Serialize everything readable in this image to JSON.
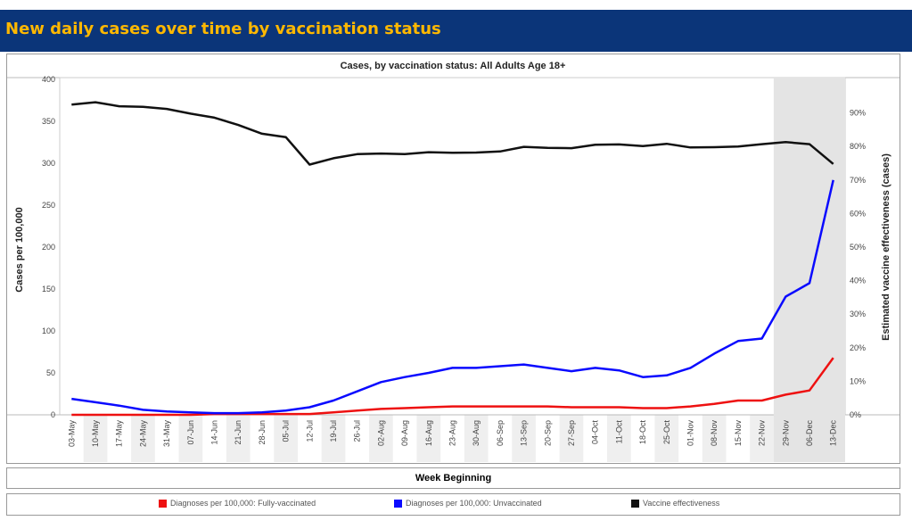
{
  "header": {
    "title": "New daily cases over time by vaccination status"
  },
  "chart_data": {
    "type": "line",
    "title": "Cases, by vaccination status: All Adults Age 18+",
    "xlabel": "Week Beginning",
    "ylabel": "Cases per 100,000",
    "y2label": "Estimated vaccine effectiveness (cases)",
    "ylim": [
      0,
      400
    ],
    "y2lim": [
      0,
      1
    ],
    "y_ticks": [
      "0",
      "50",
      "100",
      "150",
      "200",
      "250",
      "300",
      "350",
      "400"
    ],
    "y2_ticks": [
      "0%",
      "10%",
      "20%",
      "30%",
      "40%",
      "50%",
      "60%",
      "70%",
      "80%",
      "90%"
    ],
    "categories": [
      "03-May",
      "10-May",
      "17-May",
      "24-May",
      "31-May",
      "07-Jun",
      "14-Jun",
      "21-Jun",
      "28-Jun",
      "05-Jul",
      "12-Jul",
      "19-Jul",
      "26-Jul",
      "02-Aug",
      "09-Aug",
      "16-Aug",
      "23-Aug",
      "30-Aug",
      "06-Sep",
      "13-Sep",
      "20-Sep",
      "27-Sep",
      "04-Oct",
      "11-Oct",
      "18-Oct",
      "25-Oct",
      "01-Nov",
      "08-Nov",
      "15-Nov",
      "22-Nov",
      "29-Nov",
      "06-Dec",
      "13-Dec"
    ],
    "shaded_from": "29-Nov",
    "series": [
      {
        "name": "Diagnoses per 100,000: Fully-vaccinated",
        "axis": "left",
        "color": "#ee1111",
        "values": [
          0,
          0,
          0,
          0,
          0,
          0,
          1,
          1,
          1,
          1,
          1,
          3,
          5,
          7,
          8,
          9,
          10,
          10,
          10,
          10,
          10,
          9,
          9,
          9,
          8,
          8,
          10,
          13,
          17,
          17,
          24,
          29,
          68
        ]
      },
      {
        "name": "Diagnoses per 100,000: Unvaccinated",
        "axis": "left",
        "color": "#0a0aff",
        "values": [
          19,
          15,
          11,
          6,
          4,
          3,
          2,
          2,
          3,
          5,
          9,
          17,
          28,
          39,
          45,
          50,
          56,
          56,
          58,
          60,
          56,
          52,
          56,
          53,
          45,
          47,
          56,
          73,
          88,
          91,
          141,
          157,
          280
        ]
      },
      {
        "name": "Vaccine effectiveness",
        "axis": "right",
        "color": "#111111",
        "values": [
          0.925,
          0.932,
          0.92,
          0.918,
          0.912,
          0.898,
          0.886,
          0.864,
          0.838,
          0.828,
          0.746,
          0.765,
          0.777,
          0.779,
          0.777,
          0.783,
          0.781,
          0.782,
          0.785,
          0.799,
          0.796,
          0.795,
          0.805,
          0.806,
          0.801,
          0.808,
          0.797,
          0.798,
          0.8,
          0.807,
          0.813,
          0.807,
          0.748
        ]
      }
    ]
  }
}
